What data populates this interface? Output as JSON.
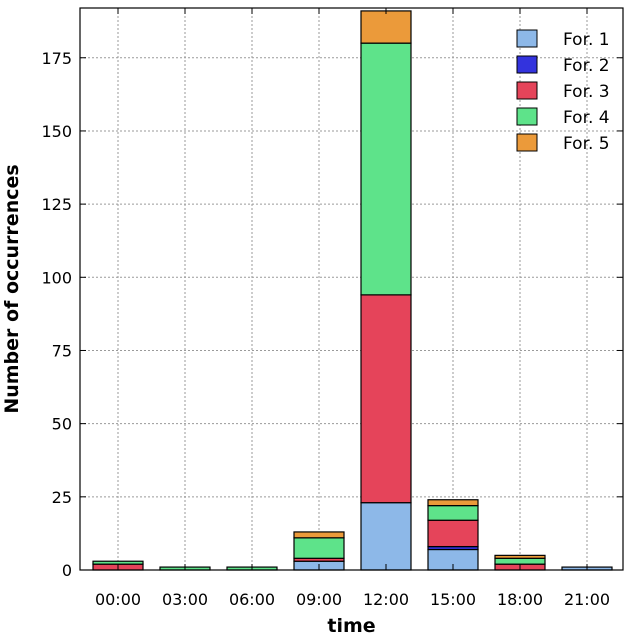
{
  "chart_data": {
    "type": "bar",
    "stacked": true,
    "categories": [
      "00:00",
      "03:00",
      "06:00",
      "09:00",
      "12:00",
      "15:00",
      "18:00",
      "21:00"
    ],
    "series": [
      {
        "name": "For. 1",
        "color": "#8db8e8",
        "values": [
          0,
          0,
          0,
          3,
          23,
          7,
          0,
          1
        ]
      },
      {
        "name": "For. 2",
        "color": "#3333dd",
        "values": [
          0,
          0,
          0,
          0,
          0,
          1,
          0,
          0
        ]
      },
      {
        "name": "For. 3",
        "color": "#e5445a",
        "values": [
          2,
          0,
          0,
          1,
          71,
          9,
          2,
          0
        ]
      },
      {
        "name": "For. 4",
        "color": "#5ee38a",
        "values": [
          1,
          1,
          1,
          7,
          86,
          5,
          2,
          0
        ]
      },
      {
        "name": "For. 5",
        "color": "#eb9a3a",
        "values": [
          0,
          0,
          0,
          2,
          11,
          2,
          1,
          0
        ]
      }
    ],
    "xlabel": "time",
    "ylabel": "Number of occurrences",
    "ylim": [
      0,
      192
    ],
    "yticks": [
      0,
      25,
      50,
      75,
      100,
      125,
      150,
      175
    ],
    "grid": true,
    "legend_position": "top-right"
  }
}
